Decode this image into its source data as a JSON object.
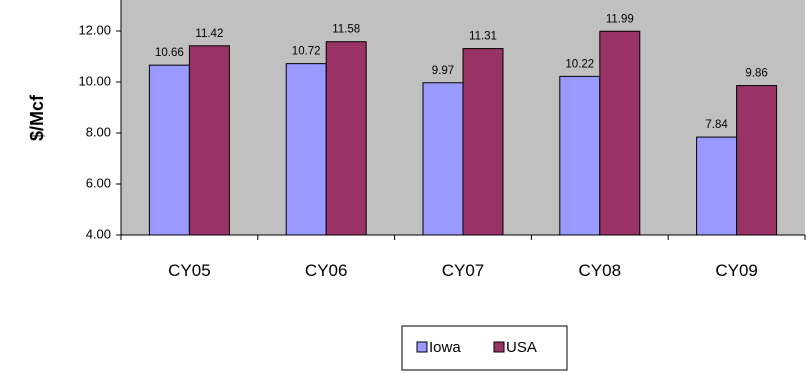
{
  "chart_data": {
    "type": "bar",
    "title": "",
    "xlabel": "",
    "ylabel": "$/Mcf",
    "categories": [
      "CY05",
      "CY06",
      "CY07",
      "CY08",
      "CY09"
    ],
    "series": [
      {
        "name": "Iowa",
        "values": [
          10.66,
          10.72,
          9.97,
          10.22,
          7.84
        ],
        "labels": [
          "10.66",
          "10.72",
          "9.97",
          "10.22",
          "7.84"
        ],
        "color": "#9999ff"
      },
      {
        "name": "USA",
        "values": [
          11.42,
          11.58,
          11.31,
          11.99,
          9.86
        ],
        "labels": [
          "11.42",
          "11.58",
          "11.31",
          "11.99",
          "9.86"
        ],
        "color": "#993366"
      }
    ],
    "ylim": [
      4,
      12
    ],
    "yticks": [
      4,
      6,
      8,
      10,
      12
    ],
    "ytick_labels": [
      "4.00",
      "6.00",
      "8.00",
      "10.00",
      "12.00"
    ],
    "grid": false,
    "plot_background": "#c0c0c0",
    "legend_position": "bottom"
  }
}
